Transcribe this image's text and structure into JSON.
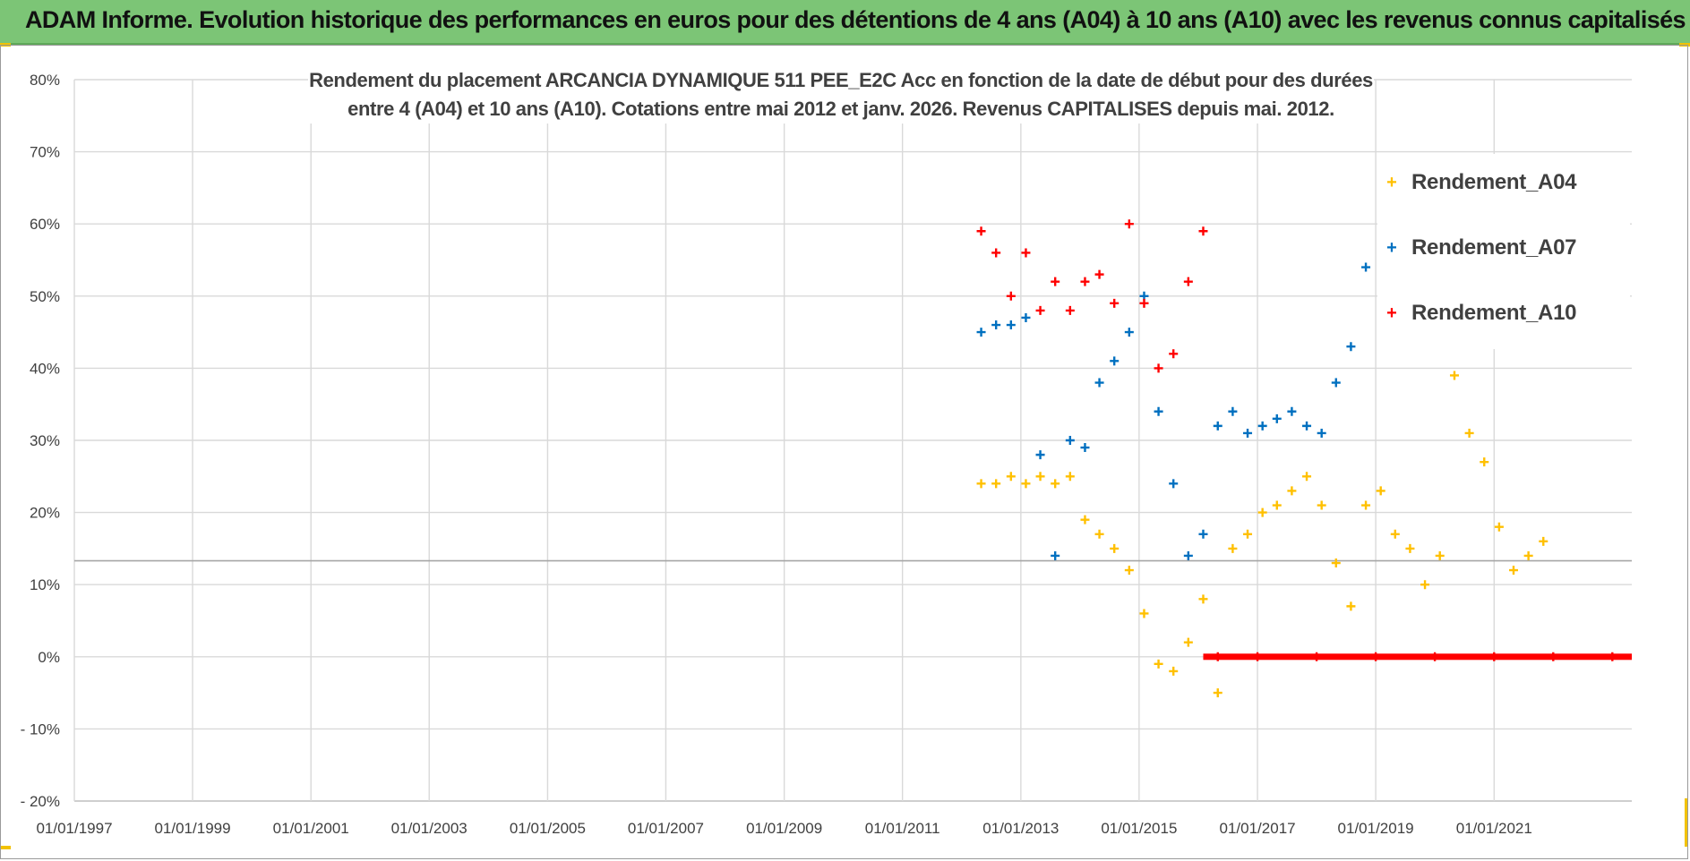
{
  "banner": {
    "title": "ADAM Informe. Evolution historique des performances en euros pour des détentions de 4 ans (A04) à 10 ans (A10) avec les revenus connus capitalisés"
  },
  "colors": {
    "banner_bg": "#7cc576",
    "A04": "#ffc000",
    "A07": "#0070c0",
    "A10": "#ff0000",
    "grid": "#d9d9d9"
  },
  "chart_data": {
    "type": "scatter",
    "title": "Rendement du placement ARCANCIA DYNAMIQUE 511 PEE_E2C Acc en fonction de la date de début pour des durées entre 4 (A04) et 10 ans (A10). Cotations entre mai 2012 et janv. 2026. Revenus CAPITALISES depuis mai. 2012.",
    "title_lines": [
      "Rendement du placement ARCANCIA DYNAMIQUE 511 PEE_E2C Acc en fonction de la date de début pour des durées",
      "entre 4 (A04) et 10 ans (A10). Cotations entre mai 2012 et janv. 2026. Revenus CAPITALISES depuis mai. 2012."
    ],
    "xlabel": "",
    "ylabel": "",
    "x_ticks": [
      "01/01/1997",
      "01/01/1999",
      "01/01/2001",
      "01/01/2003",
      "01/01/2005",
      "01/01/2007",
      "01/01/2009",
      "01/01/2011",
      "01/01/2013",
      "01/01/2015",
      "01/01/2017",
      "01/01/2019",
      "01/01/2021"
    ],
    "x_range": [
      "1997-01-01",
      "2023-05-01"
    ],
    "y_ticks": [
      "80%",
      "70%",
      "60%",
      "50%",
      "40%",
      "30%",
      "20%",
      "10%",
      "0%",
      "- 10%",
      "- 20%"
    ],
    "ylim": [
      -20,
      80
    ],
    "grid": true,
    "reference_line_y": 13.3,
    "legend_position": "right",
    "series": [
      {
        "name": "Rendement_A04",
        "marker": "+",
        "points": [
          [
            "2012-05",
            24
          ],
          [
            "2012-08",
            24
          ],
          [
            "2012-11",
            25
          ],
          [
            "2013-02",
            24
          ],
          [
            "2013-05",
            25
          ],
          [
            "2013-08",
            24
          ],
          [
            "2013-11",
            25
          ],
          [
            "2014-02",
            19
          ],
          [
            "2014-05",
            17
          ],
          [
            "2014-08",
            15
          ],
          [
            "2014-11",
            12
          ],
          [
            "2015-02",
            6
          ],
          [
            "2015-05",
            -1
          ],
          [
            "2015-08",
            -2
          ],
          [
            "2015-11",
            2
          ],
          [
            "2016-02",
            8
          ],
          [
            "2016-05",
            -5
          ],
          [
            "2016-08",
            15
          ],
          [
            "2016-11",
            17
          ],
          [
            "2017-02",
            20
          ],
          [
            "2017-05",
            21
          ],
          [
            "2017-08",
            23
          ],
          [
            "2017-11",
            25
          ],
          [
            "2018-02",
            21
          ],
          [
            "2018-05",
            13
          ],
          [
            "2018-08",
            7
          ],
          [
            "2018-11",
            21
          ],
          [
            "2019-02",
            23
          ],
          [
            "2019-05",
            17
          ],
          [
            "2019-08",
            15
          ],
          [
            "2019-11",
            10
          ],
          [
            "2020-02",
            14
          ],
          [
            "2020-05",
            39
          ],
          [
            "2020-08",
            31
          ],
          [
            "2020-11",
            27
          ],
          [
            "2021-02",
            18
          ],
          [
            "2021-05",
            12
          ],
          [
            "2021-08",
            14
          ],
          [
            "2021-11",
            16
          ]
        ]
      },
      {
        "name": "Rendement_A07",
        "marker": "+",
        "points": [
          [
            "2012-05",
            45
          ],
          [
            "2012-08",
            46
          ],
          [
            "2012-11",
            46
          ],
          [
            "2013-02",
            47
          ],
          [
            "2013-05",
            28
          ],
          [
            "2013-08",
            14
          ],
          [
            "2013-11",
            30
          ],
          [
            "2014-02",
            29
          ],
          [
            "2014-05",
            38
          ],
          [
            "2014-08",
            41
          ],
          [
            "2014-11",
            45
          ],
          [
            "2015-02",
            50
          ],
          [
            "2015-05",
            34
          ],
          [
            "2015-08",
            24
          ],
          [
            "2015-11",
            14
          ],
          [
            "2016-02",
            17
          ],
          [
            "2016-05",
            32
          ],
          [
            "2016-08",
            34
          ],
          [
            "2016-11",
            31
          ],
          [
            "2017-02",
            32
          ],
          [
            "2017-05",
            33
          ],
          [
            "2017-08",
            34
          ],
          [
            "2017-11",
            32
          ],
          [
            "2018-02",
            31
          ],
          [
            "2018-05",
            38
          ],
          [
            "2018-08",
            43
          ],
          [
            "2018-11",
            54
          ]
        ]
      },
      {
        "name": "Rendement_A10",
        "marker": "+",
        "points": [
          [
            "2012-05",
            59
          ],
          [
            "2012-08",
            56
          ],
          [
            "2012-11",
            50
          ],
          [
            "2013-02",
            56
          ],
          [
            "2013-05",
            48
          ],
          [
            "2013-08",
            52
          ],
          [
            "2013-11",
            48
          ],
          [
            "2014-02",
            52
          ],
          [
            "2014-05",
            53
          ],
          [
            "2014-08",
            49
          ],
          [
            "2014-11",
            60
          ],
          [
            "2015-02",
            49
          ],
          [
            "2015-05",
            40
          ],
          [
            "2015-08",
            42
          ],
          [
            "2015-11",
            52
          ],
          [
            "2016-02",
            59
          ],
          [
            "2016-05",
            0
          ],
          [
            "2017-01",
            0
          ],
          [
            "2018-01",
            0
          ],
          [
            "2019-01",
            0
          ],
          [
            "2020-01",
            0
          ],
          [
            "2021-01",
            0
          ],
          [
            "2022-01",
            0
          ],
          [
            "2023-01",
            0
          ]
        ]
      }
    ]
  }
}
